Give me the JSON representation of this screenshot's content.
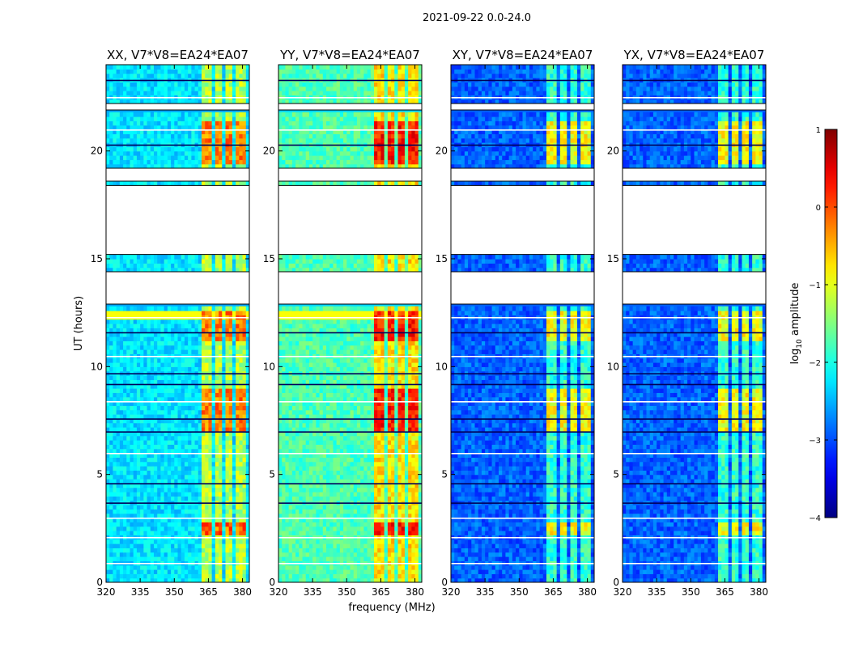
{
  "chart_data": {
    "type": "heatmap",
    "title": "2021-09-22 0.0-24.0",
    "xlabel": "frequency (MHz)",
    "ylabel": "UT (hours)",
    "xlim": [
      320,
      383
    ],
    "ylim": [
      0,
      24
    ],
    "xticks": [
      320,
      335,
      350,
      365,
      380
    ],
    "yticks": [
      0,
      5,
      10,
      15,
      20
    ],
    "colorbar": {
      "label": "log10 amplitude",
      "label_base": "log",
      "label_sub": "10",
      "label_rest": " amplitude",
      "ticks": [
        1,
        0,
        -1,
        -2,
        -3,
        -4
      ],
      "vmin": -4,
      "vmax": 1,
      "colormap": "jet"
    },
    "panels": [
      {
        "title": "XX, V7*V8=EA24*EA07",
        "level": 0.35
      },
      {
        "title": "YY, V7*V8=EA24*EA07",
        "level": 0.45
      },
      {
        "title": "XY, V7*V8=EA24*EA07",
        "level": 0.22
      },
      {
        "title": "YX, V7*V8=EA24*EA07",
        "level": 0.22
      }
    ],
    "flagged_bands_hours": [
      [
        12.9,
        14.4
      ],
      [
        15.2,
        18.4
      ],
      [
        18.6,
        19.2
      ],
      [
        21.9,
        22.2
      ]
    ],
    "rfi_channels_mhz": [
      [
        362,
        366.5
      ],
      [
        367.5,
        371.5
      ],
      [
        373,
        376
      ],
      [
        377,
        381
      ]
    ],
    "bright_rows_hours": [
      [
        2.2,
        2.8
      ],
      [
        7.0,
        9.0
      ],
      [
        11.3,
        12.5
      ],
      [
        19.4,
        21.5
      ]
    ],
    "gap_lines_hours": [
      0.9,
      2.1,
      3.0,
      3.7,
      4.6,
      6.0,
      7.0,
      7.6,
      8.4,
      9.2,
      9.7,
      10.5,
      11.6,
      12.3,
      20.3,
      21.0,
      22.5,
      23.3
    ]
  }
}
